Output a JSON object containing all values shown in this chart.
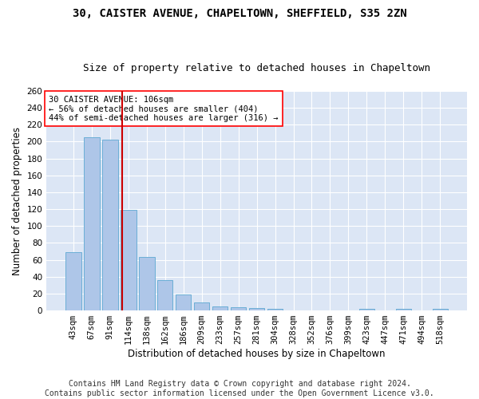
{
  "title1": "30, CAISTER AVENUE, CHAPELTOWN, SHEFFIELD, S35 2ZN",
  "title2": "Size of property relative to detached houses in Chapeltown",
  "xlabel": "Distribution of detached houses by size in Chapeltown",
  "ylabel": "Number of detached properties",
  "footer1": "Contains HM Land Registry data © Crown copyright and database right 2024.",
  "footer2": "Contains public sector information licensed under the Open Government Licence v3.0.",
  "annotation_line1": "30 CAISTER AVENUE: 106sqm",
  "annotation_line2": "← 56% of detached houses are smaller (404)",
  "annotation_line3": "44% of semi-detached houses are larger (316) →",
  "bar_labels": [
    "43sqm",
    "67sqm",
    "91sqm",
    "114sqm",
    "138sqm",
    "162sqm",
    "186sqm",
    "209sqm",
    "233sqm",
    "257sqm",
    "281sqm",
    "304sqm",
    "328sqm",
    "352sqm",
    "376sqm",
    "399sqm",
    "423sqm",
    "447sqm",
    "471sqm",
    "494sqm",
    "518sqm"
  ],
  "bar_values": [
    69,
    205,
    202,
    119,
    63,
    36,
    19,
    10,
    5,
    4,
    3,
    2,
    0,
    0,
    0,
    0,
    2,
    0,
    2,
    0,
    2
  ],
  "bar_color": "#aec6e8",
  "bar_edge_color": "#6baed6",
  "ylim": [
    0,
    260
  ],
  "yticks": [
    0,
    20,
    40,
    60,
    80,
    100,
    120,
    140,
    160,
    180,
    200,
    220,
    240,
    260
  ],
  "plot_bg_color": "#dce6f5",
  "fig_bg_color": "#ffffff",
  "grid_color": "#ffffff",
  "red_line_color": "#cc0000",
  "title_fontsize": 10,
  "subtitle_fontsize": 9,
  "axis_label_fontsize": 8.5,
  "tick_fontsize": 7.5,
  "footer_fontsize": 7,
  "annot_fontsize": 7.5
}
